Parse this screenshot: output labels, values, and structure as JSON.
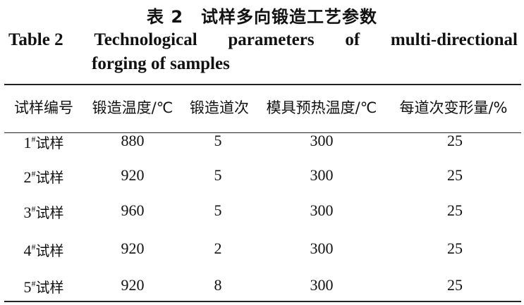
{
  "title_cn": "表 2　试样多向锻造工艺参数",
  "title_en": {
    "label": "Table 2",
    "words": [
      "Technological",
      "parameters",
      "of",
      "multi-directional"
    ],
    "line2": "forging of samples"
  },
  "columns": [
    "试样编号",
    "锻造温度/℃",
    "锻造道次",
    "模具预热温度/℃",
    "每道次变形量/%"
  ],
  "rows": [
    {
      "num": "1",
      "sup": "#",
      "name": "试样",
      "temp": "880",
      "passes": "5",
      "mold": "300",
      "strain": "25"
    },
    {
      "num": "2",
      "sup": "#",
      "name": "试样",
      "temp": "920",
      "passes": "5",
      "mold": "300",
      "strain": "25"
    },
    {
      "num": "3",
      "sup": "#",
      "name": "试样",
      "temp": "960",
      "passes": "5",
      "mold": "300",
      "strain": "25"
    },
    {
      "num": "4",
      "sup": "#",
      "name": "试样",
      "temp": "920",
      "passes": "2",
      "mold": "300",
      "strain": "25"
    },
    {
      "num": "5",
      "sup": "#",
      "name": "试样",
      "temp": "920",
      "passes": "8",
      "mold": "300",
      "strain": "25"
    }
  ]
}
